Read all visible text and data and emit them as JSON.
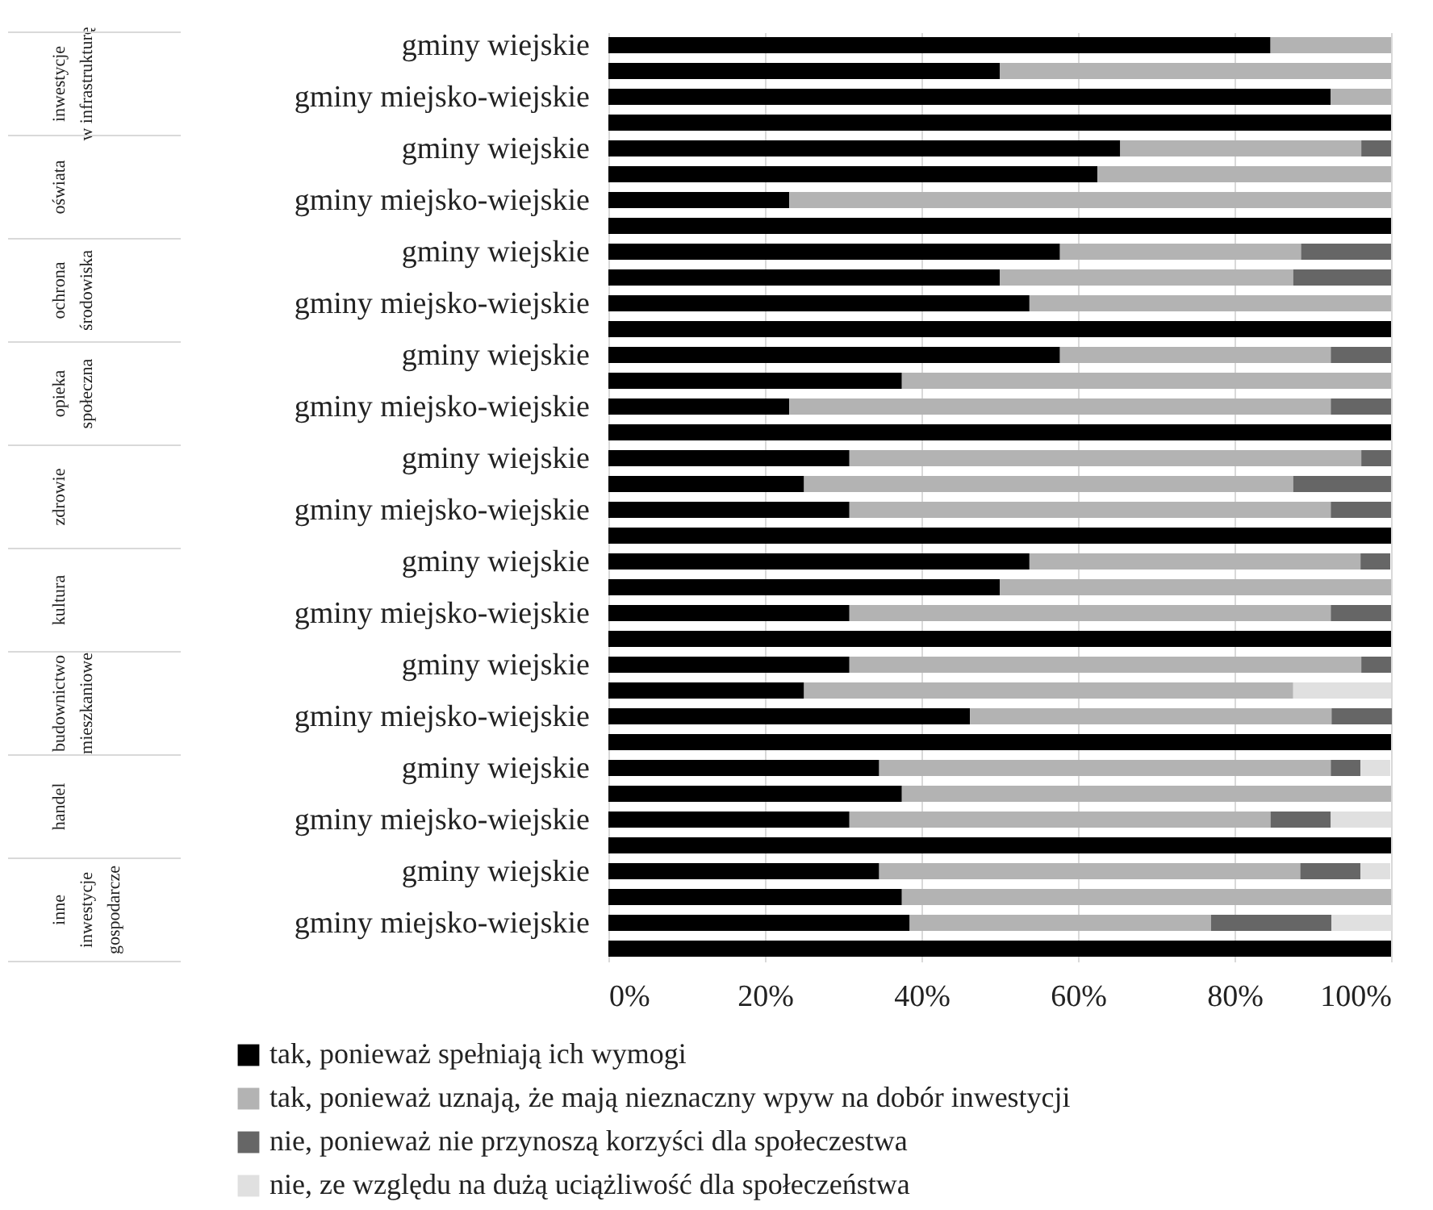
{
  "chart_data": {
    "type": "bar",
    "orientation": "horizontal",
    "stacked": true,
    "grid": "x",
    "legend": "bottom",
    "categories": [
      "gminy wiejskie",
      null,
      "gminy miejsko-wiejskie",
      null,
      "gminy wiejskie",
      null,
      "gminy miejsko-wiejskie",
      null,
      "gminy wiejskie",
      null,
      "gminy miejsko-wiejskie",
      null,
      "gminy wiejskie",
      null,
      "gminy miejsko-wiejskie",
      null,
      "gminy wiejskie",
      null,
      "gminy miejsko-wiejskie",
      null,
      "gminy wiejskie",
      null,
      "gminy miejsko-wiejskie",
      null,
      "gminy wiejskie",
      null,
      "gminy miejsko-wiejskie",
      null,
      "gminy wiejskie",
      null,
      "gminy miejsko-wiejskie",
      null,
      "gminy wiejskie",
      null,
      "gminy miejsko-wiejskie",
      null
    ],
    "annotations": [
      "inwestycje\nw infrastrukturę",
      "oświata",
      "ochrona\nśrodowiska",
      "opieka\nspołeczna",
      "zdrowie",
      "kultura",
      "budownictwo\nmieszkaniowe",
      "handel",
      "inne\ninwestycje\ngospodarcze"
    ],
    "xlim": [
      0,
      100
    ],
    "xticks": [
      {
        "value": 0,
        "label": "0%"
      },
      {
        "value": 20,
        "label": "20%"
      },
      {
        "value": 40,
        "label": "40%"
      },
      {
        "value": 60,
        "label": "60%"
      },
      {
        "value": 80,
        "label": "80%"
      },
      {
        "value": 100,
        "label": "100%"
      }
    ],
    "series": [
      {
        "name": "tak, ponieważ spełniają ich wymogi",
        "color": "#000000",
        "values": [
          84.6,
          50,
          92.3,
          100,
          65.4,
          62.5,
          23.1,
          100,
          57.7,
          50,
          53.8,
          100,
          57.7,
          37.5,
          23.1,
          100,
          30.8,
          25,
          30.8,
          100,
          53.8,
          50,
          30.8,
          100,
          30.8,
          25,
          46.2,
          100,
          34.6,
          37.5,
          30.8,
          100,
          34.6,
          37.5,
          38.5,
          100
        ]
      },
      {
        "name": "tak, ponieważ uznają, że mają nieznaczny wpyw na dobór inwestycji",
        "color": "#b3b3b3",
        "values": [
          15.4,
          50,
          7.7,
          null,
          30.8,
          37.5,
          76.9,
          null,
          30.8,
          37.5,
          46.2,
          null,
          34.6,
          62.5,
          69.2,
          null,
          65.4,
          62.5,
          61.5,
          null,
          42.3,
          50,
          61.5,
          null,
          65.4,
          62.5,
          46.2,
          null,
          57.7,
          62.5,
          53.8,
          null,
          53.8,
          62.5,
          38.5,
          null
        ]
      },
      {
        "name": "nie, ponieważ nie przynoszą korzyści dla społeczestwa",
        "color": "#666666",
        "values": [
          null,
          null,
          null,
          null,
          3.8,
          null,
          null,
          null,
          11.5,
          12.5,
          null,
          null,
          7.7,
          null,
          7.7,
          null,
          3.8,
          12.5,
          7.7,
          null,
          3.8,
          null,
          7.7,
          null,
          3.8,
          null,
          7.7,
          null,
          3.8,
          null,
          7.7,
          null,
          7.7,
          null,
          15.4,
          null
        ]
      },
      {
        "name": "nie, ze względu na dużą uciążliwość dla społeczeństwa",
        "color": "#e0e0e0",
        "values": [
          null,
          null,
          null,
          null,
          null,
          null,
          null,
          null,
          null,
          null,
          null,
          null,
          null,
          null,
          null,
          null,
          null,
          null,
          null,
          null,
          null,
          null,
          null,
          null,
          null,
          12.5,
          null,
          null,
          3.8,
          null,
          7.7,
          null,
          3.8,
          null,
          7.7,
          null
        ]
      }
    ]
  }
}
